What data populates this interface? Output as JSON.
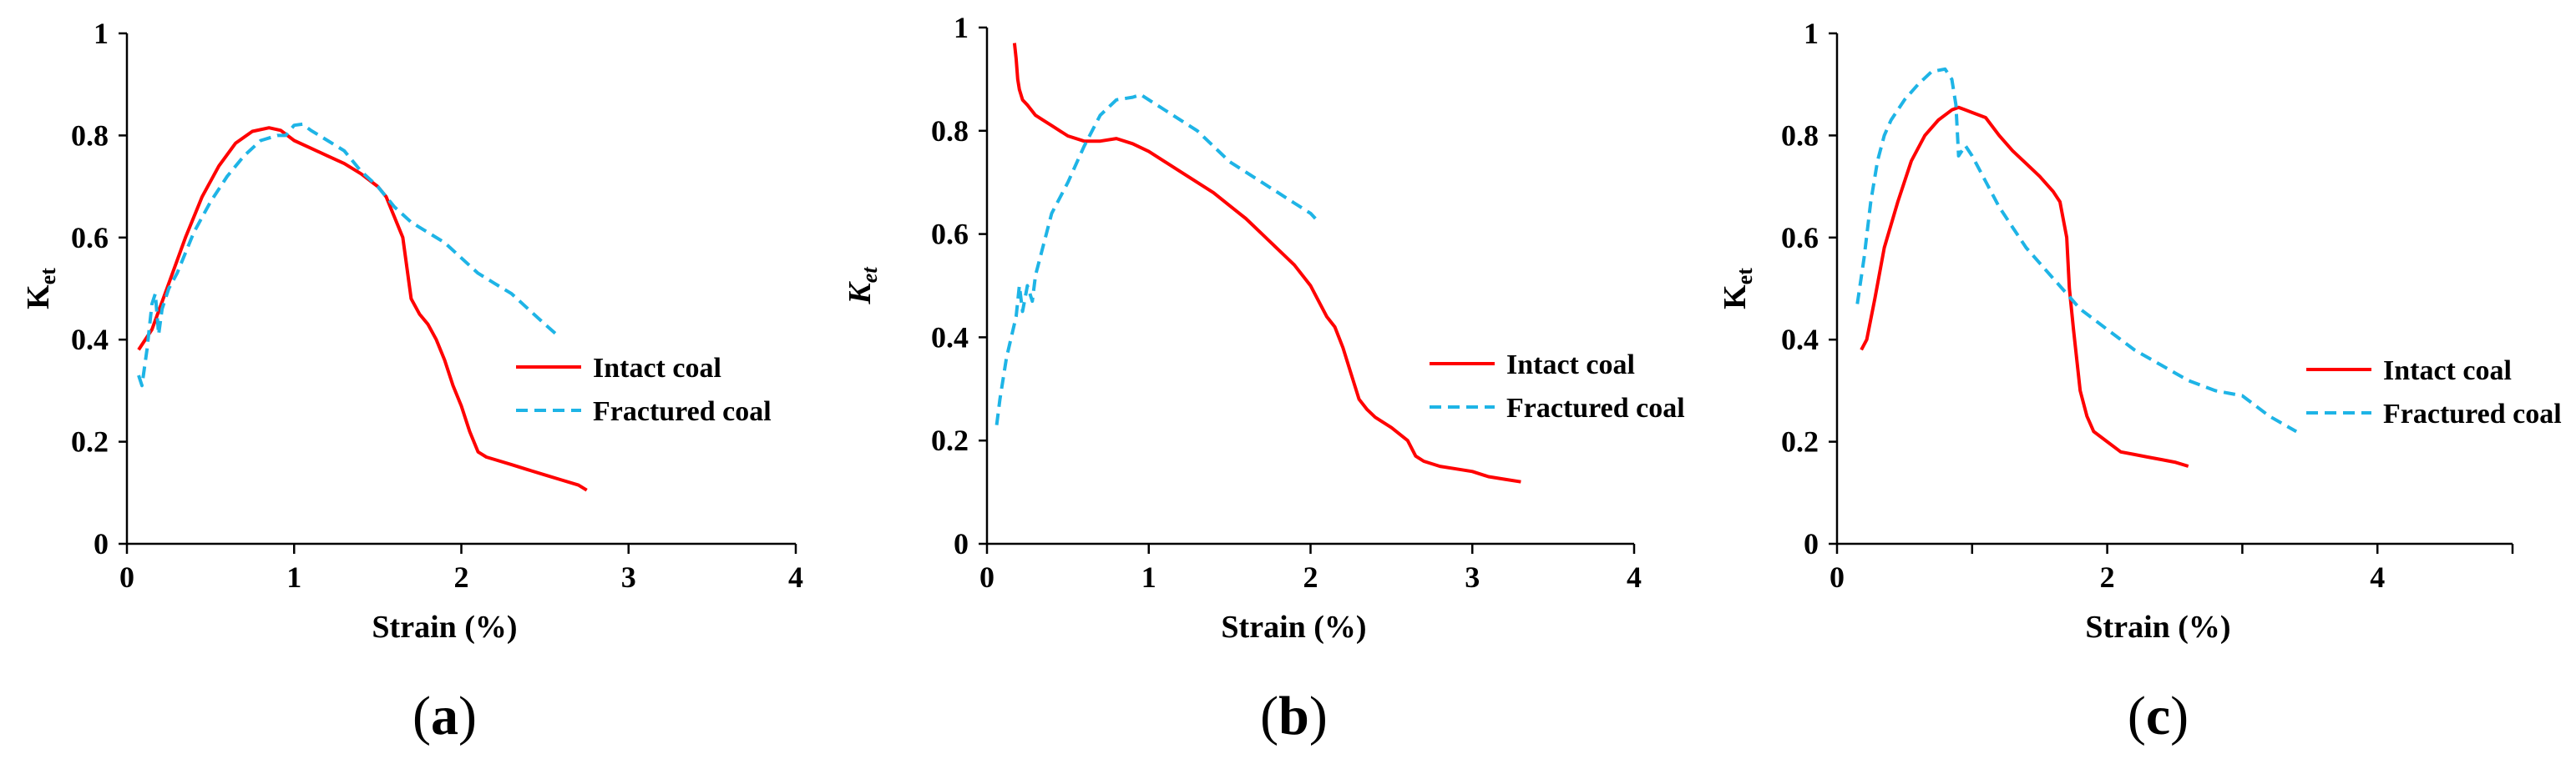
{
  "colors": {
    "intact": "#ff0000",
    "fractured": "#1eb4e6",
    "axis": "#000000"
  },
  "chart_data": [
    {
      "type": "line",
      "panel": "(a)",
      "panel_letter": "a",
      "xlabel": "Strain (%)",
      "ylabel_main": "K",
      "ylabel_sub": "et",
      "xlim": [
        0,
        4
      ],
      "ylim": [
        0,
        1
      ],
      "xticks": [
        0,
        1,
        2,
        3,
        4
      ],
      "xtick_labels": [
        "0",
        "1",
        "2",
        "3",
        "4"
      ],
      "yticks": [
        0,
        0.2,
        0.4,
        0.6,
        0.8,
        1
      ],
      "ytick_labels": [
        "0",
        "0.2",
        "0.4",
        "0.6",
        "0.8",
        "1"
      ],
      "legend": [
        "Intact coal",
        "Fractured coal"
      ],
      "series": [
        {
          "name": "Intact coal",
          "style": "solid",
          "x": [
            0.07,
            0.15,
            0.25,
            0.35,
            0.45,
            0.55,
            0.65,
            0.75,
            0.85,
            0.92,
            1.0,
            1.1,
            1.2,
            1.3,
            1.4,
            1.5,
            1.55,
            1.6,
            1.65,
            1.7,
            1.75,
            1.8,
            1.85,
            1.9,
            1.95,
            2.0,
            2.05,
            2.1,
            2.15,
            2.2,
            2.3,
            2.4,
            2.5,
            2.6,
            2.7,
            2.75
          ],
          "y": [
            0.38,
            0.42,
            0.51,
            0.6,
            0.68,
            0.74,
            0.785,
            0.808,
            0.815,
            0.81,
            0.79,
            0.775,
            0.76,
            0.745,
            0.725,
            0.7,
            0.68,
            0.64,
            0.6,
            0.48,
            0.45,
            0.43,
            0.4,
            0.36,
            0.31,
            0.27,
            0.22,
            0.18,
            0.17,
            0.165,
            0.155,
            0.145,
            0.135,
            0.125,
            0.115,
            0.105
          ]
        },
        {
          "name": "Fractured coal",
          "style": "dashed",
          "x": [
            0.07,
            0.09,
            0.12,
            0.15,
            0.17,
            0.19,
            0.21,
            0.25,
            0.3,
            0.4,
            0.5,
            0.6,
            0.7,
            0.8,
            0.9,
            0.95,
            1.0,
            1.05,
            1.1,
            1.2,
            1.3,
            1.4,
            1.5,
            1.6,
            1.7,
            1.8,
            1.9,
            2.0,
            2.1,
            2.2,
            2.3,
            2.4,
            2.5,
            2.57
          ],
          "y": [
            0.33,
            0.31,
            0.38,
            0.47,
            0.49,
            0.41,
            0.46,
            0.5,
            0.53,
            0.61,
            0.67,
            0.72,
            0.76,
            0.79,
            0.8,
            0.8,
            0.82,
            0.822,
            0.81,
            0.79,
            0.77,
            0.73,
            0.7,
            0.66,
            0.63,
            0.61,
            0.59,
            0.56,
            0.53,
            0.51,
            0.49,
            0.46,
            0.43,
            0.41
          ]
        }
      ]
    },
    {
      "type": "line",
      "panel": "(b)",
      "panel_letter": "b",
      "xlabel": "Strain (%)",
      "ylabel_main": "K",
      "ylabel_sub": "et",
      "xlim": [
        0,
        4
      ],
      "ylim": [
        0,
        1
      ],
      "xticks": [
        0,
        1,
        2,
        3,
        4
      ],
      "xtick_labels": [
        "0",
        "1",
        "2",
        "3",
        "4"
      ],
      "yticks": [
        0,
        0.2,
        0.4,
        0.6,
        0.8,
        1
      ],
      "ytick_labels": [
        "0",
        "0.2",
        "0.4",
        "0.6",
        "0.8",
        "1"
      ],
      "legend": [
        "Intact coal",
        "Fractured coal"
      ],
      "series": [
        {
          "name": "Intact coal",
          "style": "solid",
          "x": [
            0.17,
            0.18,
            0.19,
            0.2,
            0.22,
            0.25,
            0.3,
            0.35,
            0.4,
            0.5,
            0.6,
            0.7,
            0.8,
            0.9,
            1.0,
            1.1,
            1.2,
            1.3,
            1.4,
            1.5,
            1.6,
            1.7,
            1.8,
            1.9,
            2.0,
            2.05,
            2.1,
            2.15,
            2.2,
            2.25,
            2.3,
            2.35,
            2.4,
            2.5,
            2.6,
            2.65,
            2.7,
            2.8,
            2.9,
            3.0,
            3.1,
            3.2,
            3.3
          ],
          "y": [
            0.97,
            0.94,
            0.9,
            0.88,
            0.86,
            0.85,
            0.83,
            0.82,
            0.81,
            0.79,
            0.78,
            0.78,
            0.785,
            0.775,
            0.76,
            0.74,
            0.72,
            0.7,
            0.68,
            0.655,
            0.63,
            0.6,
            0.57,
            0.54,
            0.5,
            0.47,
            0.44,
            0.42,
            0.38,
            0.33,
            0.28,
            0.26,
            0.245,
            0.225,
            0.2,
            0.17,
            0.16,
            0.15,
            0.145,
            0.14,
            0.13,
            0.125,
            0.12
          ]
        },
        {
          "name": "Fractured coal",
          "style": "dashed",
          "x": [
            0.06,
            0.08,
            0.1,
            0.12,
            0.15,
            0.18,
            0.2,
            0.22,
            0.25,
            0.28,
            0.3,
            0.35,
            0.4,
            0.5,
            0.6,
            0.7,
            0.8,
            0.9,
            0.95,
            1.0,
            1.1,
            1.2,
            1.3,
            1.4,
            1.5,
            1.6,
            1.7,
            1.8,
            1.9,
            2.0,
            2.03
          ],
          "y": [
            0.23,
            0.28,
            0.32,
            0.36,
            0.4,
            0.44,
            0.5,
            0.45,
            0.5,
            0.47,
            0.52,
            0.58,
            0.64,
            0.7,
            0.77,
            0.83,
            0.86,
            0.865,
            0.87,
            0.86,
            0.84,
            0.82,
            0.8,
            0.77,
            0.74,
            0.72,
            0.7,
            0.68,
            0.66,
            0.64,
            0.63
          ]
        }
      ]
    },
    {
      "type": "line",
      "panel": "(c)",
      "panel_letter": "c",
      "xlabel": "Strain (%)",
      "ylabel_main": "K",
      "ylabel_sub": "et",
      "xlim": [
        0,
        5
      ],
      "ylim": [
        0,
        1
      ],
      "xticks": [
        0,
        2,
        4
      ],
      "xtick_labels": [
        "0",
        "2",
        "4"
      ],
      "minor_xticks": [
        1,
        3,
        5
      ],
      "yticks": [
        0,
        0.2,
        0.4,
        0.6,
        0.8,
        1
      ],
      "ytick_labels": [
        "0",
        "0.2",
        "0.4",
        "0.6",
        "0.8",
        "1"
      ],
      "legend": [
        "Intact coal",
        "Fractured coal"
      ],
      "series": [
        {
          "name": "Intact coal",
          "style": "solid",
          "x": [
            0.18,
            0.22,
            0.28,
            0.35,
            0.45,
            0.55,
            0.65,
            0.75,
            0.85,
            0.9,
            0.95,
            1.0,
            1.1,
            1.2,
            1.3,
            1.4,
            1.5,
            1.6,
            1.65,
            1.7,
            1.72,
            1.75,
            1.8,
            1.85,
            1.9,
            2.0,
            2.1,
            2.2,
            2.3,
            2.4,
            2.5,
            2.6
          ],
          "y": [
            0.38,
            0.4,
            0.48,
            0.58,
            0.67,
            0.75,
            0.8,
            0.83,
            0.85,
            0.855,
            0.85,
            0.845,
            0.835,
            0.8,
            0.77,
            0.745,
            0.72,
            0.69,
            0.67,
            0.6,
            0.5,
            0.42,
            0.3,
            0.25,
            0.22,
            0.2,
            0.18,
            0.175,
            0.17,
            0.165,
            0.16,
            0.152
          ]
        },
        {
          "name": "Fractured coal",
          "style": "dashed",
          "x": [
            0.15,
            0.2,
            0.25,
            0.3,
            0.35,
            0.4,
            0.5,
            0.6,
            0.7,
            0.8,
            0.85,
            0.88,
            0.9,
            0.95,
            1.0,
            1.1,
            1.2,
            1.3,
            1.4,
            1.5,
            1.6,
            1.7,
            1.8,
            1.9,
            2.0,
            2.2,
            2.4,
            2.6,
            2.8,
            3.0,
            3.2,
            3.4
          ],
          "y": [
            0.47,
            0.56,
            0.67,
            0.75,
            0.8,
            0.83,
            0.87,
            0.9,
            0.925,
            0.93,
            0.91,
            0.86,
            0.76,
            0.78,
            0.76,
            0.71,
            0.66,
            0.62,
            0.58,
            0.55,
            0.52,
            0.49,
            0.46,
            0.44,
            0.42,
            0.38,
            0.35,
            0.32,
            0.3,
            0.29,
            0.25,
            0.22
          ]
        }
      ]
    }
  ]
}
